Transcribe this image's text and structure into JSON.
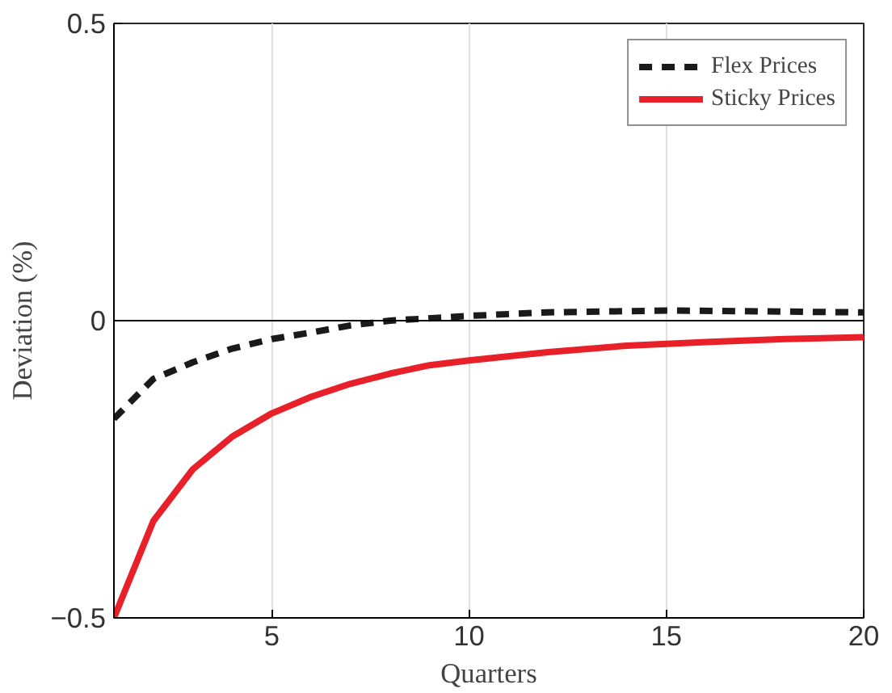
{
  "chart_data": {
    "type": "line",
    "xlabel": "Quarters",
    "ylabel": "Deviation (%)",
    "xlim": [
      1,
      20
    ],
    "ylim": [
      -0.5,
      0.5
    ],
    "xticks": [
      5,
      10,
      15,
      20
    ],
    "yticks": [
      -0.5,
      0,
      0.5
    ],
    "grid": "x",
    "legend": "top right",
    "ref_lines": [
      {
        "axis": "y",
        "value": 0,
        "color": "#000000"
      }
    ],
    "series": [
      {
        "name": "Flex Prices",
        "color": "#1a1a1a",
        "line_style": "dashed",
        "x": [
          1,
          2,
          3,
          4,
          5,
          6,
          7,
          8,
          10,
          12,
          15,
          20
        ],
        "values": [
          -0.165,
          -0.098,
          -0.07,
          -0.047,
          -0.031,
          -0.02,
          -0.008,
          0,
          0.008,
          0.014,
          0.017,
          0.014
        ]
      },
      {
        "name": "Sticky Prices",
        "color": "#e8202a",
        "line_style": "solid",
        "x": [
          1,
          2,
          3,
          4,
          5,
          6,
          7,
          8,
          9,
          10,
          12,
          14,
          16,
          18,
          20
        ],
        "values": [
          -0.5,
          -0.337,
          -0.25,
          -0.195,
          -0.156,
          -0.128,
          -0.106,
          -0.089,
          -0.075,
          -0.067,
          -0.053,
          -0.042,
          -0.036,
          -0.031,
          -0.028
        ]
      }
    ]
  }
}
